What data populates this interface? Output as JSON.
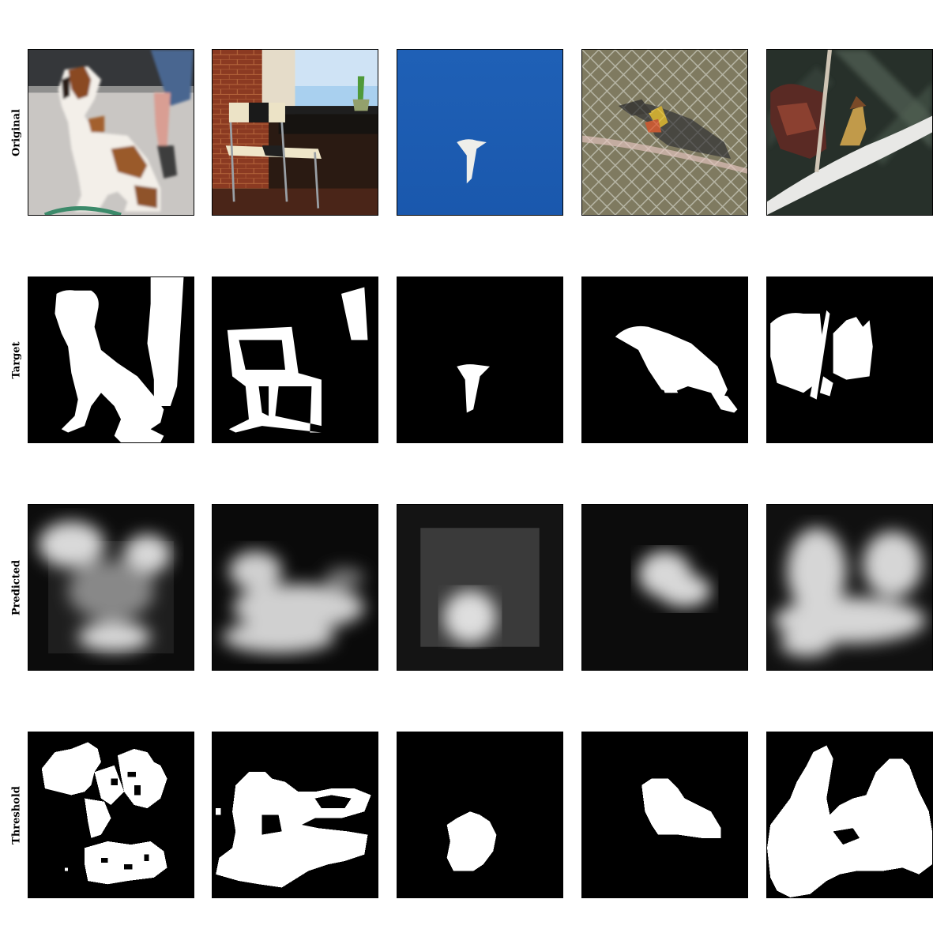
{
  "rows": [
    {
      "label": "Original"
    },
    {
      "label": "Target"
    },
    {
      "label": "Predicted"
    },
    {
      "label": "Threshold"
    }
  ],
  "images": {
    "original": [
      "dog",
      "chair",
      "white-bird-in-blue-sky",
      "toucan-behind-fence",
      "hoatzin-on-branch"
    ],
    "target": [
      "dog-and-leg-mask",
      "chair-and-plant-mask",
      "bird-mask",
      "toucan-mask",
      "hoatzin-mask"
    ],
    "predicted": [
      "dog-prediction",
      "chair-prediction",
      "bird-prediction",
      "toucan-prediction",
      "hoatzin-prediction"
    ],
    "threshold": [
      "dog-threshold",
      "chair-threshold",
      "bird-threshold",
      "toucan-threshold",
      "hoatzin-threshold"
    ]
  }
}
